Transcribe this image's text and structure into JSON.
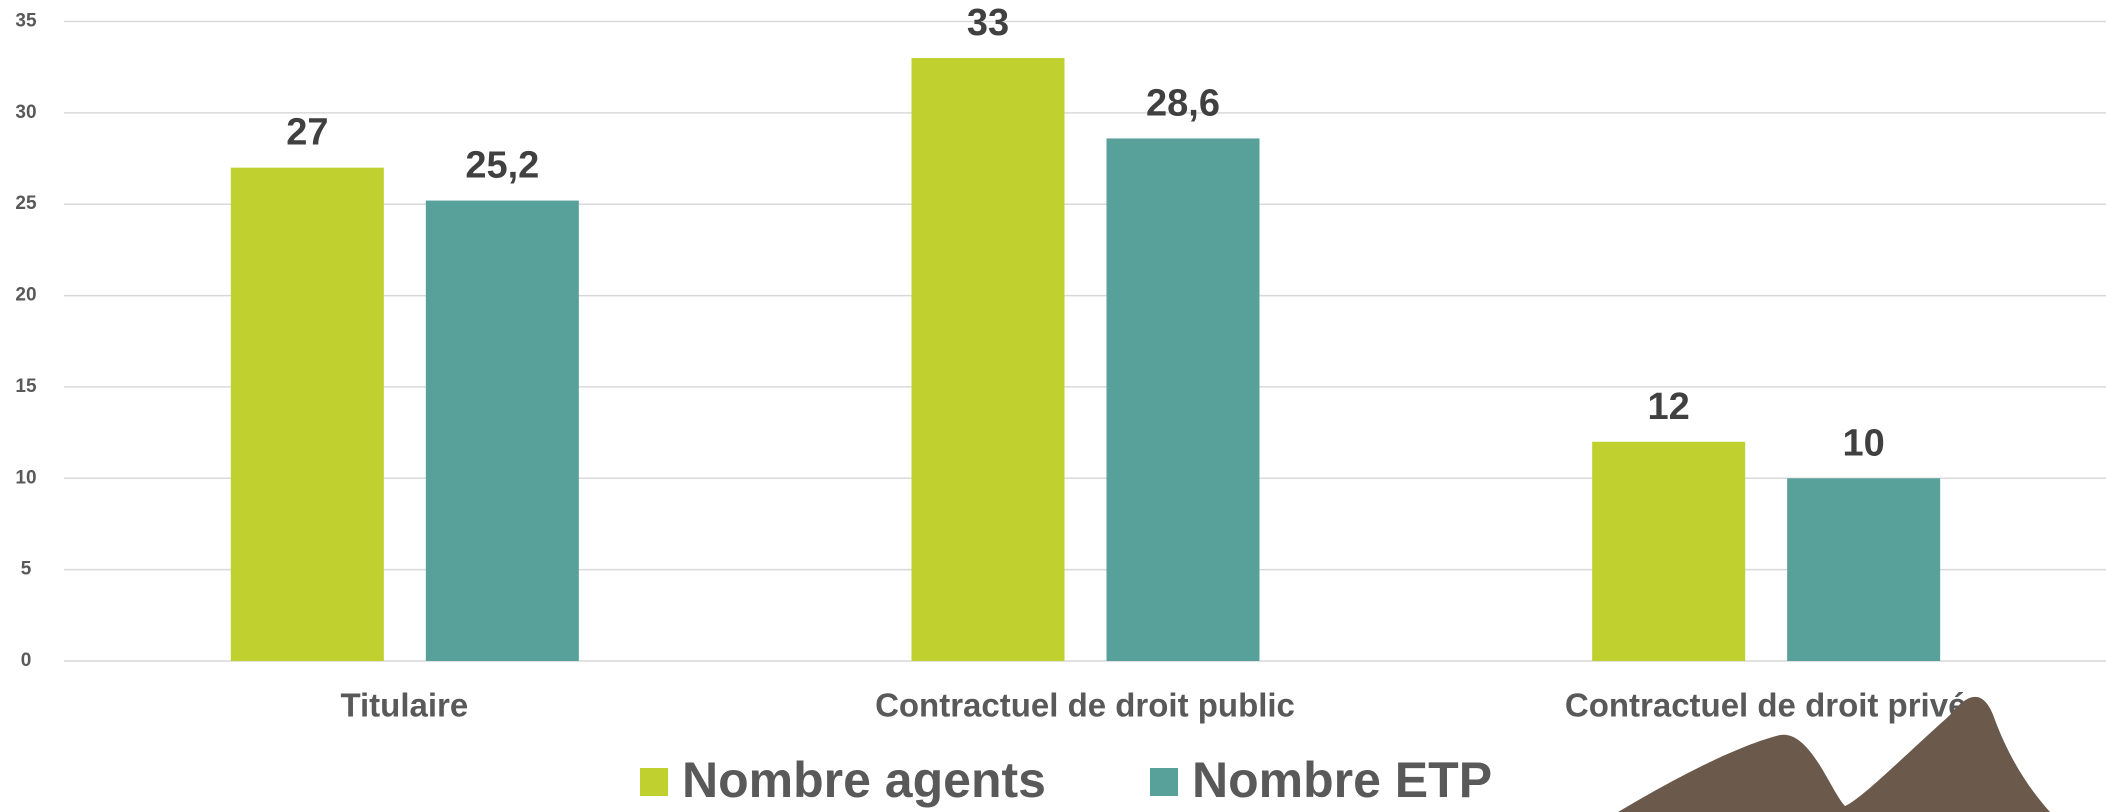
{
  "chart_data": {
    "type": "bar",
    "categories": [
      "Titulaire",
      "Contractuel de droit public",
      "Contractuel de droit privé"
    ],
    "series": [
      {
        "name": "Nombre agents",
        "color": "#bfd02f",
        "values": [
          27,
          33,
          12
        ]
      },
      {
        "name": "Nombre ETP",
        "color": "#58a09a",
        "values": [
          25.2,
          28.6,
          10
        ],
        "value_labels": [
          "25,2",
          "28,6",
          "10"
        ]
      }
    ],
    "ylim": [
      0,
      35
    ],
    "yticks": [
      0,
      5,
      10,
      15,
      20,
      25,
      30,
      35
    ],
    "grid": true,
    "legend": "bottom"
  }
}
